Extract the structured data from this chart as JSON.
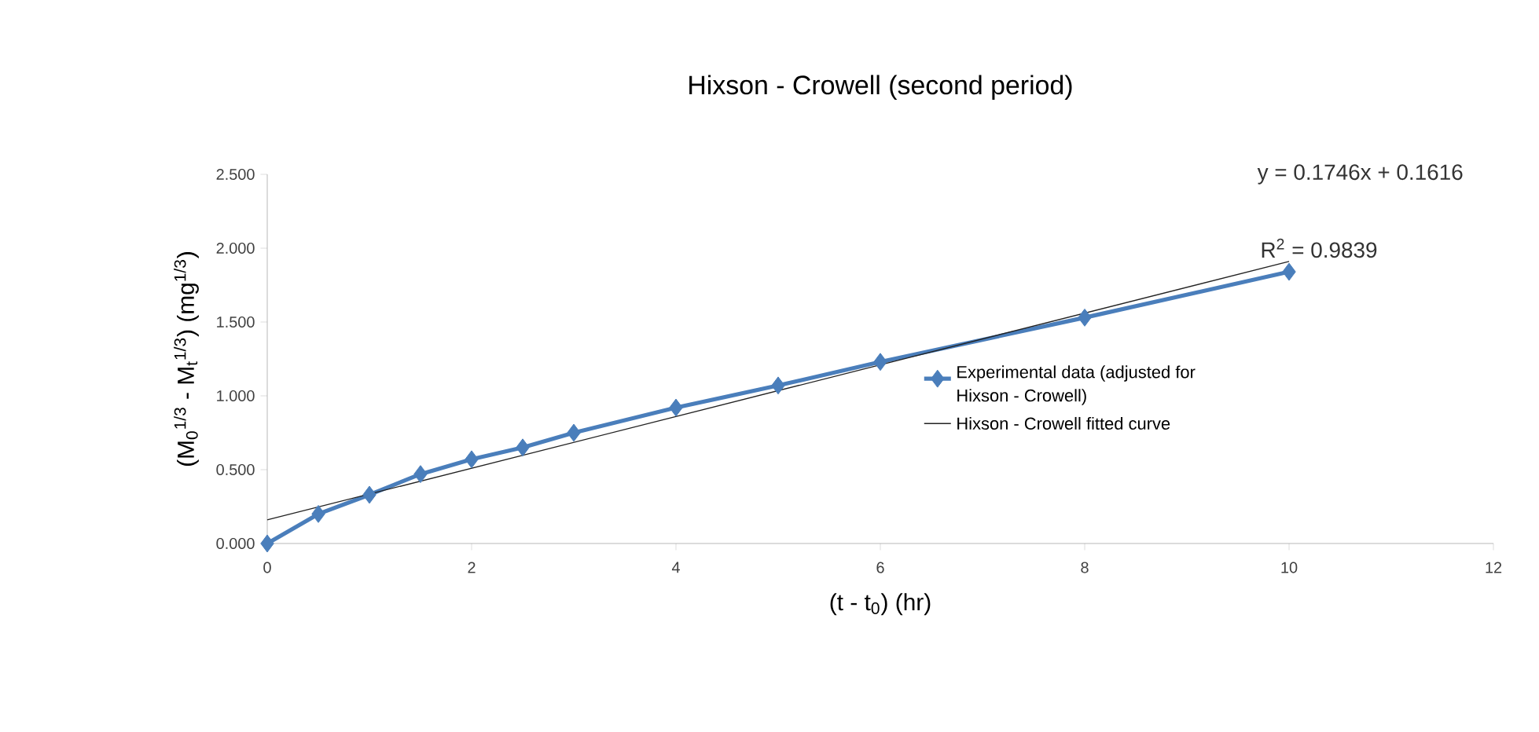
{
  "chart_data": {
    "type": "line",
    "title": "Hixson - Crowell (second period)",
    "xlabel": "(t - t$_{0}$) (hr)",
    "ylabel": "(M$_{0}$$^{1/3}$ - M$_{t}$$^{1/3}$) (mg$^{1/3}$)",
    "xlim": [
      0,
      12
    ],
    "xticks": [
      0,
      2,
      4,
      6,
      8,
      10,
      12
    ],
    "ylim": [
      0,
      2.5
    ],
    "yticks": [
      {
        "value": 0,
        "label": "0.000"
      },
      {
        "value": 0.5,
        "label": "0.500"
      },
      {
        "value": 1,
        "label": "1.000"
      },
      {
        "value": 1.5,
        "label": "1.500"
      },
      {
        "value": 2,
        "label": "2.000"
      },
      {
        "value": 2.5,
        "label": "2.500"
      }
    ],
    "series": [
      {
        "name": "Experimental data (adjusted for Hixson - Crowell)",
        "color": "#4a7ebb",
        "marker": "diamond",
        "x": [
          0,
          0.5,
          1,
          1.5,
          2,
          2.5,
          3,
          4,
          5,
          6,
          8,
          10
        ],
        "values": [
          0,
          0.2,
          0.33,
          0.47,
          0.57,
          0.65,
          0.75,
          0.92,
          1.07,
          1.23,
          1.53,
          1.84
        ]
      },
      {
        "name": "Hixson - Crowell fitted curve",
        "color": "#222222",
        "marker": "none",
        "x": [
          0,
          10
        ],
        "values": [
          0.16,
          1.91
        ]
      }
    ],
    "annotations": [
      "y = 0.1746x + 0.1616",
      "R$^{2}$ = 0.9839"
    ],
    "legend": "right"
  }
}
